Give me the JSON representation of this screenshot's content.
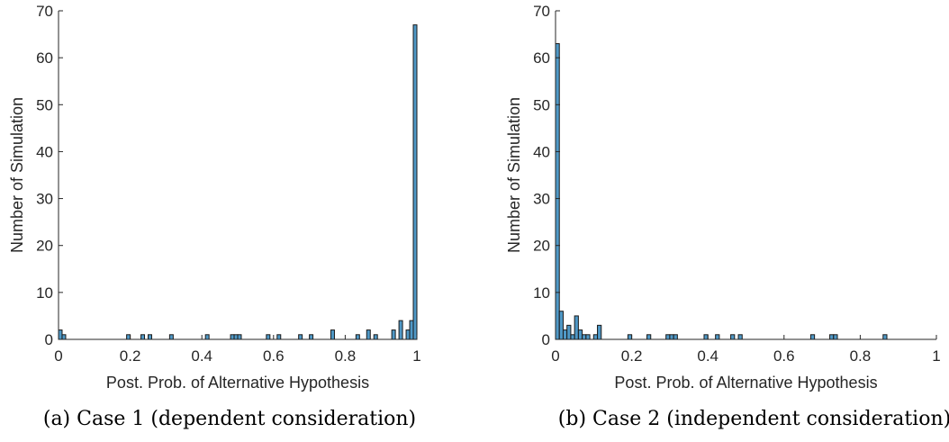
{
  "colors": {
    "bar_fill": "#4f98c6",
    "bar_edge": "#1a1a1a",
    "axis": "#262626"
  },
  "chart_data": [
    {
      "type": "bar",
      "caption": "(a)  Case 1 (dependent consideration)",
      "xlabel": "Post. Prob. of Alternative Hypothesis",
      "ylabel": "Number of Simulation",
      "xlim": [
        0,
        1
      ],
      "ylim": [
        0,
        70
      ],
      "bin_width": 0.01,
      "xticks": [
        "0",
        "0.2",
        "0.4",
        "0.6",
        "0.8",
        "1"
      ],
      "yticks": [
        "0",
        "10",
        "20",
        "30",
        "40",
        "50",
        "60",
        "70"
      ],
      "bins": [
        {
          "x": 0.005,
          "count": 2
        },
        {
          "x": 0.015,
          "count": 1
        },
        {
          "x": 0.195,
          "count": 1
        },
        {
          "x": 0.235,
          "count": 1
        },
        {
          "x": 0.255,
          "count": 1
        },
        {
          "x": 0.315,
          "count": 1
        },
        {
          "x": 0.415,
          "count": 1
        },
        {
          "x": 0.485,
          "count": 1
        },
        {
          "x": 0.495,
          "count": 1
        },
        {
          "x": 0.505,
          "count": 1
        },
        {
          "x": 0.585,
          "count": 1
        },
        {
          "x": 0.615,
          "count": 1
        },
        {
          "x": 0.675,
          "count": 1
        },
        {
          "x": 0.705,
          "count": 1
        },
        {
          "x": 0.765,
          "count": 2
        },
        {
          "x": 0.835,
          "count": 1
        },
        {
          "x": 0.865,
          "count": 2
        },
        {
          "x": 0.885,
          "count": 1
        },
        {
          "x": 0.935,
          "count": 2
        },
        {
          "x": 0.955,
          "count": 4
        },
        {
          "x": 0.975,
          "count": 2
        },
        {
          "x": 0.985,
          "count": 4
        },
        {
          "x": 0.995,
          "count": 67
        }
      ]
    },
    {
      "type": "bar",
      "caption": "(b)  Case 2 (independent consideration)",
      "xlabel": "Post. Prob. of Alternative Hypothesis",
      "ylabel": "Number of Simulation",
      "xlim": [
        0,
        1
      ],
      "ylim": [
        0,
        70
      ],
      "bin_width": 0.01,
      "xticks": [
        "0",
        "0.2",
        "0.4",
        "0.6",
        "0.8",
        "1"
      ],
      "yticks": [
        "0",
        "10",
        "20",
        "30",
        "40",
        "50",
        "60",
        "70"
      ],
      "bins": [
        {
          "x": 0.005,
          "count": 63
        },
        {
          "x": 0.015,
          "count": 6
        },
        {
          "x": 0.025,
          "count": 2
        },
        {
          "x": 0.035,
          "count": 3
        },
        {
          "x": 0.045,
          "count": 1
        },
        {
          "x": 0.055,
          "count": 5
        },
        {
          "x": 0.065,
          "count": 2
        },
        {
          "x": 0.075,
          "count": 1
        },
        {
          "x": 0.085,
          "count": 1
        },
        {
          "x": 0.105,
          "count": 1
        },
        {
          "x": 0.115,
          "count": 3
        },
        {
          "x": 0.195,
          "count": 1
        },
        {
          "x": 0.245,
          "count": 1
        },
        {
          "x": 0.295,
          "count": 1
        },
        {
          "x": 0.305,
          "count": 1
        },
        {
          "x": 0.315,
          "count": 1
        },
        {
          "x": 0.395,
          "count": 1
        },
        {
          "x": 0.425,
          "count": 1
        },
        {
          "x": 0.465,
          "count": 1
        },
        {
          "x": 0.485,
          "count": 1
        },
        {
          "x": 0.675,
          "count": 1
        },
        {
          "x": 0.725,
          "count": 1
        },
        {
          "x": 0.735,
          "count": 1
        },
        {
          "x": 0.865,
          "count": 1
        }
      ]
    }
  ]
}
